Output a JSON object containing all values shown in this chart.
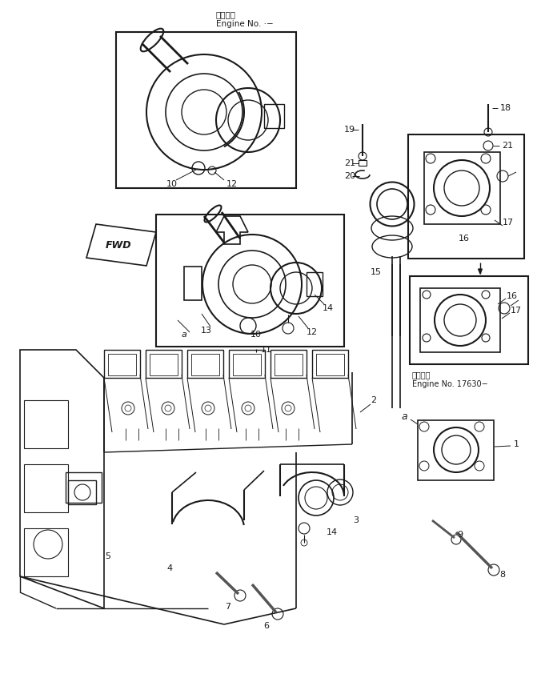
{
  "bg_color": "#ffffff",
  "line_color": "#1a1a1a",
  "title_top_jp": "適用号機",
  "title_top_en": "Engine No. ·−",
  "title_bot_jp": "適用号機",
  "title_bot_en": "Engine No. 17630−",
  "fwd": "FWD"
}
